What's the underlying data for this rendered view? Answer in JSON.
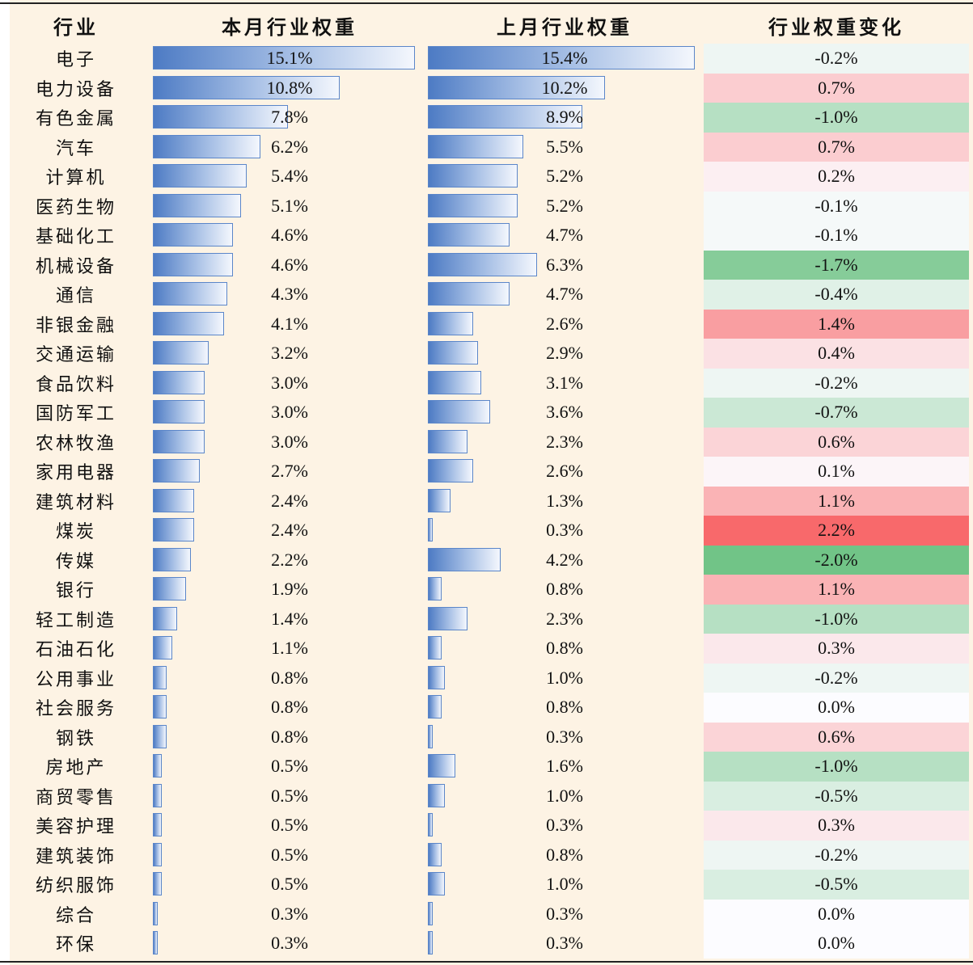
{
  "table": {
    "headers": {
      "industry": "行业",
      "this_month": "本月行业权重",
      "last_month": "上月行业权重",
      "change": "行业权重变化"
    }
  },
  "chart_data": {
    "type": "table",
    "columns": [
      "行业",
      "本月行业权重",
      "上月行业权重",
      "行业权重变化"
    ],
    "value_unit": "%",
    "rows": [
      {
        "industry": "电子",
        "this_month": "15.1%",
        "last_month": "15.4%",
        "change": "-0.2%",
        "tm": 15.1,
        "lm": 15.4,
        "chg": -0.2
      },
      {
        "industry": "电力设备",
        "this_month": "10.8%",
        "last_month": "10.2%",
        "change": "0.7%",
        "tm": 10.8,
        "lm": 10.2,
        "chg": 0.7
      },
      {
        "industry": "有色金属",
        "this_month": "7.8%",
        "last_month": "8.9%",
        "change": "-1.0%",
        "tm": 7.8,
        "lm": 8.9,
        "chg": -1.0
      },
      {
        "industry": "汽车",
        "this_month": "6.2%",
        "last_month": "5.5%",
        "change": "0.7%",
        "tm": 6.2,
        "lm": 5.5,
        "chg": 0.7
      },
      {
        "industry": "计算机",
        "this_month": "5.4%",
        "last_month": "5.2%",
        "change": "0.2%",
        "tm": 5.4,
        "lm": 5.2,
        "chg": 0.2
      },
      {
        "industry": "医药生物",
        "this_month": "5.1%",
        "last_month": "5.2%",
        "change": "-0.1%",
        "tm": 5.1,
        "lm": 5.2,
        "chg": -0.1
      },
      {
        "industry": "基础化工",
        "this_month": "4.6%",
        "last_month": "4.7%",
        "change": "-0.1%",
        "tm": 4.6,
        "lm": 4.7,
        "chg": -0.1
      },
      {
        "industry": "机械设备",
        "this_month": "4.6%",
        "last_month": "6.3%",
        "change": "-1.7%",
        "tm": 4.6,
        "lm": 6.3,
        "chg": -1.7
      },
      {
        "industry": "通信",
        "this_month": "4.3%",
        "last_month": "4.7%",
        "change": "-0.4%",
        "tm": 4.3,
        "lm": 4.7,
        "chg": -0.4
      },
      {
        "industry": "非银金融",
        "this_month": "4.1%",
        "last_month": "2.6%",
        "change": "1.4%",
        "tm": 4.1,
        "lm": 2.6,
        "chg": 1.4
      },
      {
        "industry": "交通运输",
        "this_month": "3.2%",
        "last_month": "2.9%",
        "change": "0.4%",
        "tm": 3.2,
        "lm": 2.9,
        "chg": 0.4
      },
      {
        "industry": "食品饮料",
        "this_month": "3.0%",
        "last_month": "3.1%",
        "change": "-0.2%",
        "tm": 3.0,
        "lm": 3.1,
        "chg": -0.2
      },
      {
        "industry": "国防军工",
        "this_month": "3.0%",
        "last_month": "3.6%",
        "change": "-0.7%",
        "tm": 3.0,
        "lm": 3.6,
        "chg": -0.7
      },
      {
        "industry": "农林牧渔",
        "this_month": "3.0%",
        "last_month": "2.3%",
        "change": "0.6%",
        "tm": 3.0,
        "lm": 2.3,
        "chg": 0.6
      },
      {
        "industry": "家用电器",
        "this_month": "2.7%",
        "last_month": "2.6%",
        "change": "0.1%",
        "tm": 2.7,
        "lm": 2.6,
        "chg": 0.1
      },
      {
        "industry": "建筑材料",
        "this_month": "2.4%",
        "last_month": "1.3%",
        "change": "1.1%",
        "tm": 2.4,
        "lm": 1.3,
        "chg": 1.1
      },
      {
        "industry": "煤炭",
        "this_month": "2.4%",
        "last_month": "0.3%",
        "change": "2.2%",
        "tm": 2.4,
        "lm": 0.3,
        "chg": 2.2
      },
      {
        "industry": "传媒",
        "this_month": "2.2%",
        "last_month": "4.2%",
        "change": "-2.0%",
        "tm": 2.2,
        "lm": 4.2,
        "chg": -2.0
      },
      {
        "industry": "银行",
        "this_month": "1.9%",
        "last_month": "0.8%",
        "change": "1.1%",
        "tm": 1.9,
        "lm": 0.8,
        "chg": 1.1
      },
      {
        "industry": "轻工制造",
        "this_month": "1.4%",
        "last_month": "2.3%",
        "change": "-1.0%",
        "tm": 1.4,
        "lm": 2.3,
        "chg": -1.0
      },
      {
        "industry": "石油石化",
        "this_month": "1.1%",
        "last_month": "0.8%",
        "change": "0.3%",
        "tm": 1.1,
        "lm": 0.8,
        "chg": 0.3
      },
      {
        "industry": "公用事业",
        "this_month": "0.8%",
        "last_month": "1.0%",
        "change": "-0.2%",
        "tm": 0.8,
        "lm": 1.0,
        "chg": -0.2
      },
      {
        "industry": "社会服务",
        "this_month": "0.8%",
        "last_month": "0.8%",
        "change": "0.0%",
        "tm": 0.8,
        "lm": 0.8,
        "chg": 0.0
      },
      {
        "industry": "钢铁",
        "this_month": "0.8%",
        "last_month": "0.3%",
        "change": "0.6%",
        "tm": 0.8,
        "lm": 0.3,
        "chg": 0.6
      },
      {
        "industry": "房地产",
        "this_month": "0.5%",
        "last_month": "1.6%",
        "change": "-1.0%",
        "tm": 0.5,
        "lm": 1.6,
        "chg": -1.0
      },
      {
        "industry": "商贸零售",
        "this_month": "0.5%",
        "last_month": "1.0%",
        "change": "-0.5%",
        "tm": 0.5,
        "lm": 1.0,
        "chg": -0.5
      },
      {
        "industry": "美容护理",
        "this_month": "0.5%",
        "last_month": "0.3%",
        "change": "0.3%",
        "tm": 0.5,
        "lm": 0.3,
        "chg": 0.3
      },
      {
        "industry": "建筑装饰",
        "this_month": "0.5%",
        "last_month": "0.8%",
        "change": "-0.2%",
        "tm": 0.5,
        "lm": 0.8,
        "chg": -0.2
      },
      {
        "industry": "纺织服饰",
        "this_month": "0.5%",
        "last_month": "1.0%",
        "change": "-0.5%",
        "tm": 0.5,
        "lm": 1.0,
        "chg": -0.5
      },
      {
        "industry": "综合",
        "this_month": "0.3%",
        "last_month": "0.3%",
        "change": "0.0%",
        "tm": 0.3,
        "lm": 0.3,
        "chg": 0.0
      },
      {
        "industry": "环保",
        "this_month": "0.3%",
        "last_month": "0.3%",
        "change": "0.0%",
        "tm": 0.3,
        "lm": 0.3,
        "chg": 0.0
      }
    ],
    "bar_color": "#4d7bc4",
    "positive_change_color": "#f8696b",
    "negative_change_color": "#63be7b",
    "neutral_color": "#fcfcff"
  }
}
